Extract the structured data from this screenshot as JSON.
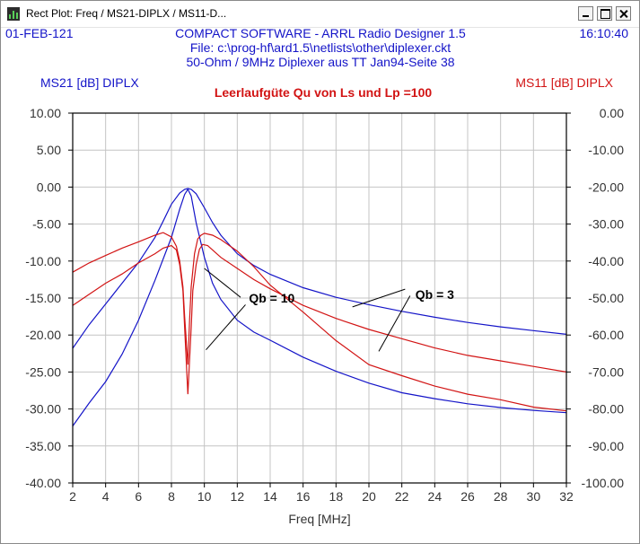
{
  "window": {
    "title": "Rect Plot: Freq / MS21-DIPLX / MS11-D..."
  },
  "header": {
    "date": "01-FEB-121",
    "time": "16:10:40",
    "line1": "COMPACT SOFTWARE - ARRL Radio Designer 1.5",
    "line2": "File: c:\\prog-hf\\ard1.5\\netlists\\other\\diplexer.ckt",
    "line3": "50-Ohm / 9MHz Diplexer aus  TT Jan94-Seite 38"
  },
  "colors": {
    "blue": "#1414c8",
    "red": "#d21414",
    "grid": "#c4c4c4"
  },
  "chart_data": {
    "type": "line",
    "title": "Leerlaufgüte Qu von Ls und Lp =100",
    "xlabel": "Freq [MHz]",
    "ylabel_left": "MS21 [dB] DIPLX",
    "ylabel_right": "MS11 [dB] DIPLX",
    "xlim": [
      2,
      32
    ],
    "ylim_left": [
      -40,
      10
    ],
    "ylim_right": [
      -100,
      0
    ],
    "xticks": [
      "2",
      "4",
      "6",
      "8",
      "10",
      "12",
      "14",
      "16",
      "18",
      "20",
      "22",
      "24",
      "26",
      "28",
      "30",
      "32"
    ],
    "yticks_left": [
      "10.00",
      "5.00",
      "0.00",
      "-5.00",
      "-10.00",
      "-15.00",
      "-20.00",
      "-25.00",
      "-30.00",
      "-35.00",
      "-40.00"
    ],
    "yticks_right": [
      "0.00",
      "-10.00",
      "-20.00",
      "-30.00",
      "-40.00",
      "-50.00",
      "-60.00",
      "-70.00",
      "-80.00",
      "-90.00",
      "-100.00"
    ],
    "grid": true,
    "series": [
      {
        "axis": "left",
        "color": "blue",
        "x": [
          2,
          3,
          4,
          5,
          6,
          7,
          7.5,
          8,
          8.5,
          8.8,
          9,
          9.2,
          9.5,
          10,
          10.5,
          11,
          12,
          13,
          14,
          16,
          18,
          20,
          22,
          24,
          26,
          28,
          30,
          32
        ],
        "y": [
          -21.8,
          -18.6,
          -15.8,
          -13.0,
          -10.2,
          -6.8,
          -4.6,
          -2.3,
          -0.8,
          -0.3,
          -0.2,
          -0.3,
          -0.9,
          -2.8,
          -4.8,
          -6.5,
          -9.0,
          -10.6,
          -11.8,
          -13.6,
          -14.9,
          -15.9,
          -16.8,
          -17.6,
          -18.3,
          -18.9,
          -19.4,
          -19.9
        ]
      },
      {
        "axis": "left",
        "color": "blue",
        "x": [
          2,
          3,
          4,
          5,
          6,
          7,
          8,
          8.5,
          8.8,
          9,
          9.2,
          9.5,
          10,
          10.5,
          11,
          12,
          13,
          14,
          16,
          18,
          20,
          22,
          24,
          26,
          28,
          30,
          32
        ],
        "y": [
          -32.3,
          -29.2,
          -26.3,
          -22.6,
          -18.0,
          -12.6,
          -6.8,
          -3.0,
          -1.0,
          -0.3,
          -1.2,
          -4.8,
          -9.5,
          -13.0,
          -15.2,
          -18.0,
          -19.6,
          -20.7,
          -23.0,
          -24.9,
          -26.5,
          -27.8,
          -28.6,
          -29.3,
          -29.8,
          -30.2,
          -30.5
        ]
      },
      {
        "axis": "right",
        "color": "red",
        "x": [
          2,
          3,
          4,
          5,
          6,
          7,
          7.5,
          8,
          8.3,
          8.5,
          8.7,
          8.8,
          9,
          9.2,
          9.3,
          9.5,
          9.7,
          9.9,
          10.2,
          10.5,
          11,
          12,
          13,
          14,
          16,
          18,
          20,
          22,
          24,
          26,
          28,
          30,
          32
        ],
        "y": [
          -52,
          -49,
          -46,
          -43.5,
          -40.5,
          -38,
          -36.5,
          -35.8,
          -37,
          -41,
          -48,
          -58,
          -76,
          -58,
          -48,
          -41,
          -36.8,
          -35.5,
          -35.8,
          -37,
          -39,
          -42,
          -45,
          -47.5,
          -52,
          -55.5,
          -58.5,
          -61,
          -63.5,
          -65.5,
          -67,
          -68.5,
          -70
        ]
      },
      {
        "axis": "right",
        "color": "red",
        "x": [
          2,
          3,
          4,
          5,
          6,
          7,
          7.5,
          8,
          8.3,
          8.5,
          8.7,
          8.8,
          9,
          9.1,
          9.2,
          9.4,
          9.6,
          9.8,
          10,
          10.5,
          11,
          12,
          13,
          14,
          16,
          18,
          20,
          22,
          24,
          26,
          28,
          30,
          32
        ],
        "y": [
          -43,
          -40.5,
          -38.5,
          -36.5,
          -34.8,
          -33,
          -32.3,
          -33.5,
          -36,
          -40,
          -47,
          -55,
          -68,
          -56,
          -47,
          -38,
          -34,
          -33,
          -32.5,
          -33,
          -34.2,
          -37.3,
          -41.5,
          -46.5,
          -53.8,
          -61.5,
          -68,
          -71,
          -73.8,
          -76,
          -77.5,
          -79.5,
          -80.5
        ]
      }
    ],
    "annotations": [
      {
        "text": "Qb = 10",
        "x": 14.1,
        "y_left": -15.0,
        "color": "black",
        "pointers": [
          {
            "x": 12.2,
            "y_left": -14.9,
            "tx": 10.0,
            "ty_left": -11.0
          },
          {
            "x": 12.5,
            "y_left": -15.9,
            "tx": 10.1,
            "ty_left": -22.0
          }
        ]
      },
      {
        "text": "Qb = 3",
        "x": 24.0,
        "y_left": -14.5,
        "color": "black",
        "pointers": [
          {
            "x": 22.2,
            "y_left": -13.8,
            "tx": 19.0,
            "ty_left": -16.2
          },
          {
            "x": 22.5,
            "y_left": -14.7,
            "tx": 20.6,
            "ty_left": -22.2
          }
        ]
      }
    ]
  }
}
